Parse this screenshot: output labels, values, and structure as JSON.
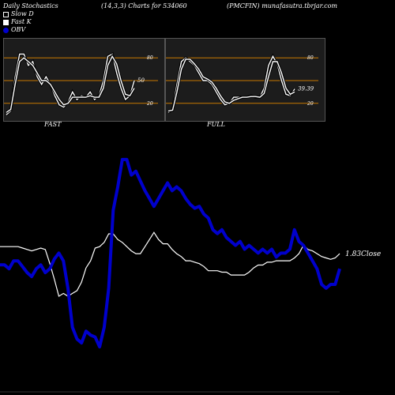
{
  "header": {
    "left": "Daily Stochastics",
    "middle": "(14,3,3) Charts for 534060",
    "right": "(PMCFIN) munafasutra.tbrjar.com"
  },
  "legend": [
    {
      "label": "Slow  D",
      "kind": "slow"
    },
    {
      "label": "Fast K",
      "kind": "fast"
    },
    {
      "label": "OBV",
      "kind": "obv"
    }
  ],
  "colors": {
    "background": "#000000",
    "panel": "#1c1c1c",
    "level_lines": "#c87800",
    "obv": "#0000cc",
    "close": "#ffffff"
  },
  "chart_data": [
    {
      "type": "line",
      "name": "FAST",
      "ylim": [
        0,
        100
      ],
      "y_ticks": [
        20,
        50,
        80
      ],
      "levels": [
        20,
        50,
        80
      ],
      "last_value_label": "50",
      "series": [
        {
          "name": "Fast K",
          "values": [
            5,
            10,
            55,
            85,
            85,
            70,
            75,
            55,
            45,
            55,
            45,
            30,
            18,
            15,
            22,
            35,
            25,
            30,
            28,
            35,
            25,
            30,
            50,
            82,
            85,
            60,
            40,
            25,
            30,
            50
          ]
        },
        {
          "name": "Slow  D",
          "values": [
            8,
            12,
            45,
            75,
            80,
            75,
            70,
            60,
            50,
            50,
            45,
            35,
            25,
            18,
            20,
            28,
            28,
            28,
            28,
            30,
            28,
            28,
            40,
            70,
            82,
            72,
            50,
            32,
            30,
            40
          ]
        }
      ]
    },
    {
      "type": "line",
      "name": "FULL",
      "ylim": [
        0,
        100
      ],
      "y_ticks": [
        20,
        50,
        80
      ],
      "levels": [
        20,
        50,
        80
      ],
      "last_value_label": "39.39",
      "series": [
        {
          "name": "Full K",
          "values": [
            8,
            12,
            45,
            75,
            80,
            75,
            70,
            60,
            50,
            50,
            45,
            35,
            25,
            18,
            20,
            28,
            28,
            28,
            28,
            30,
            28,
            28,
            40,
            70,
            82,
            72,
            50,
            32,
            30,
            39
          ]
        },
        {
          "name": "Full D",
          "values": [
            10,
            11,
            35,
            65,
            78,
            78,
            72,
            65,
            55,
            52,
            48,
            40,
            30,
            22,
            20,
            24,
            26,
            28,
            28,
            29,
            29,
            28,
            33,
            55,
            75,
            75,
            60,
            40,
            32,
            35
          ]
        }
      ]
    },
    {
      "type": "line",
      "name": "OBV and Close",
      "last_value_label": "1.83Close",
      "series": [
        {
          "name": "OBV",
          "values": [
            42,
            42,
            40,
            44,
            44,
            41,
            38,
            36,
            40,
            42,
            38,
            40,
            45,
            48,
            44,
            30,
            10,
            4,
            2,
            8,
            6,
            5,
            0,
            10,
            30,
            70,
            82,
            96,
            96,
            88,
            90,
            85,
            80,
            76,
            72,
            76,
            80,
            84,
            80,
            82,
            80,
            76,
            73,
            71,
            72,
            68,
            66,
            60,
            58,
            60,
            56,
            54,
            52,
            54,
            50,
            52,
            50,
            48,
            50,
            48,
            50,
            46,
            48,
            48,
            50,
            60,
            54,
            52,
            48,
            44,
            40,
            32,
            30,
            32,
            32,
            40
          ]
        },
        {
          "name": "Close",
          "values": [
            45,
            45,
            45,
            45,
            45,
            44,
            43,
            42,
            43,
            44,
            43,
            33,
            22,
            10,
            12,
            10,
            12,
            14,
            20,
            30,
            35,
            44,
            45,
            48,
            54,
            54,
            50,
            48,
            45,
            42,
            40,
            40,
            45,
            50,
            55,
            50,
            47,
            47,
            43,
            40,
            38,
            35,
            35,
            34,
            33,
            31,
            28,
            28,
            28,
            27,
            27,
            25,
            25,
            25,
            25,
            27,
            30,
            32,
            32,
            34,
            34,
            35,
            35,
            35,
            35,
            37,
            40,
            46,
            43,
            42,
            40,
            38,
            37,
            36,
            37,
            40
          ]
        }
      ]
    }
  ],
  "panel_labels": [
    "FAST",
    "FULL"
  ]
}
